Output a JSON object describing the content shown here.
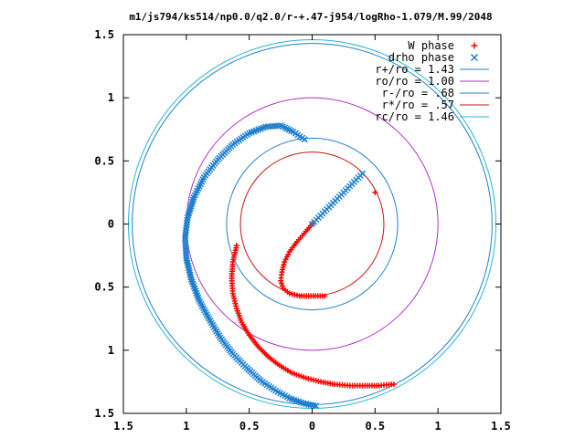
{
  "chart_data": {
    "type": "scatter",
    "title": "m1/js794/ks514/np0.0/q2.0/r-+.47-j954/logRho-1.079/M.99/2048",
    "xlabel": "",
    "ylabel": "",
    "xlim": [
      -1.5,
      1.5
    ],
    "ylim": [
      -1.5,
      1.5
    ],
    "grid": false,
    "legend_position": "top-right",
    "x_ticks": [
      "1.5",
      "1",
      "0.5",
      "0",
      "0.5",
      "1",
      "1.5"
    ],
    "y_ticks": [
      "1.5",
      "1",
      "0.5",
      "0",
      "0.5",
      "1",
      "1.5"
    ],
    "circles": [
      {
        "name": "r+/ro = 1.43",
        "radius": 1.43,
        "color": "#1e7fd0"
      },
      {
        "name": "ro/ro = 1.00",
        "radius": 1.0,
        "color": "#b030c8"
      },
      {
        "name": "r-/ro = .68",
        "radius": 0.68,
        "color": "#1e7fd0"
      },
      {
        "name": "r*/ro = .57",
        "radius": 0.57,
        "color": "#d01010"
      },
      {
        "name": "rc/ro = 1.46",
        "radius": 1.46,
        "color": "#20b8c8"
      }
    ],
    "series": [
      {
        "name": "W phase",
        "marker": "+",
        "color": "#ff0000",
        "x": [
          0.0,
          -0.05,
          -0.12,
          -0.18,
          -0.22,
          -0.24,
          -0.25,
          -0.23,
          -0.18,
          -0.1,
          0.1,
          0.5,
          -0.6,
          -0.63,
          -0.64,
          -0.63,
          -0.6,
          -0.56,
          -0.5,
          -0.43,
          -0.35,
          -0.26,
          -0.16,
          -0.05,
          0.07,
          0.18,
          0.3,
          0.42,
          0.53,
          0.63,
          0.65
        ],
        "y": [
          0.0,
          -0.06,
          -0.14,
          -0.22,
          -0.3,
          -0.38,
          -0.45,
          -0.51,
          -0.55,
          -0.57,
          -0.57,
          0.25,
          -0.17,
          -0.3,
          -0.43,
          -0.55,
          -0.67,
          -0.78,
          -0.88,
          -0.97,
          -1.05,
          -1.12,
          -1.18,
          -1.22,
          -1.25,
          -1.27,
          -1.28,
          -1.28,
          -1.28,
          -1.27,
          -1.27
        ]
      },
      {
        "name": "drho phase",
        "marker": "x",
        "color": "#1e7fd0",
        "x": [
          0.0,
          0.05,
          0.1,
          0.15,
          0.2,
          0.25,
          0.3,
          0.35,
          0.4,
          -0.06,
          -0.15,
          -0.25,
          -0.37,
          -0.5,
          -0.63,
          -0.75,
          -0.86,
          -0.94,
          -0.99,
          -1.01,
          -1.0,
          -0.96,
          -0.9,
          -0.82,
          -0.73,
          -0.63,
          -0.52,
          -0.41,
          -0.29,
          -0.18,
          -0.07,
          0.03
        ],
        "y": [
          0.0,
          0.05,
          0.1,
          0.15,
          0.2,
          0.25,
          0.3,
          0.35,
          0.4,
          0.67,
          0.73,
          0.78,
          0.77,
          0.72,
          0.63,
          0.51,
          0.37,
          0.21,
          0.05,
          -0.11,
          -0.27,
          -0.44,
          -0.6,
          -0.75,
          -0.9,
          -1.03,
          -1.14,
          -1.24,
          -1.32,
          -1.38,
          -1.42,
          -1.44
        ]
      }
    ]
  }
}
